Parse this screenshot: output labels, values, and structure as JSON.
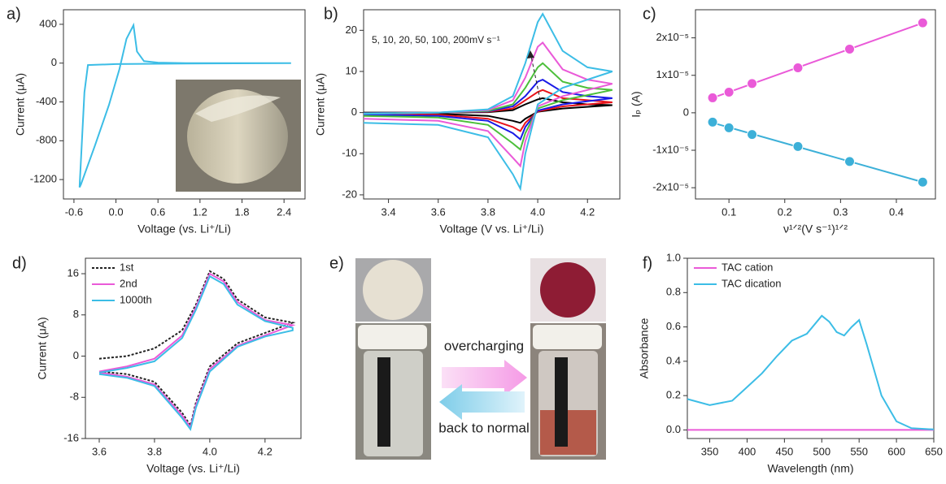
{
  "chart_data": [
    {
      "type": "line",
      "panel_label": "a)",
      "xlabel": "Voltage (vs. Li⁺/Li)",
      "ylabel": "Current (μA)",
      "xlim": [
        -0.75,
        2.7
      ],
      "ylim": [
        -1400,
        550
      ],
      "xticks": [
        -0.6,
        {
          "value": 0,
          "label": "0.0"
        },
        0.6,
        1.2,
        1.8,
        2.4
      ],
      "yticks": [
        400,
        0,
        -400,
        -800,
        -1200
      ],
      "series": [
        {
          "color": "#3cbde6",
          "x": [
            2.5,
            1.0,
            0.0,
            -0.4,
            -0.45,
            -0.52,
            -0.5,
            -0.3,
            -0.1,
            0.05,
            0.15,
            0.25,
            0.3,
            0.4,
            0.6,
            1.0,
            2.5
          ],
          "values": [
            0,
            -5,
            -10,
            -20,
            -300,
            -1280,
            -1250,
            -850,
            -430,
            -60,
            250,
            390,
            120,
            20,
            5,
            0,
            0
          ]
        }
      ]
    },
    {
      "type": "line",
      "panel_label": "b)",
      "xlabel": "Voltage (V vs. Li⁺/Li)",
      "ylabel": "Current (μA)",
      "annotation": "5, 10, 20, 50, 100, 200mV s⁻¹",
      "xlim": [
        3.3,
        4.33
      ],
      "ylim": [
        -21,
        25
      ],
      "xticks": [
        3.4,
        3.6,
        3.8,
        {
          "value": 4,
          "label": "4.0"
        },
        4.2
      ],
      "yticks": [
        -20,
        -10,
        0,
        10,
        20
      ],
      "series": [
        {
          "color": "#000000",
          "x": [
            3.3,
            3.6,
            3.8,
            3.9,
            3.95,
            4.0,
            4.02,
            4.1,
            4.2,
            4.3,
            4.3,
            4.1,
            4.0,
            3.95,
            3.93,
            3.9,
            3.8,
            3.6,
            3.3
          ],
          "values": [
            0,
            0,
            0.1,
            0.6,
            2,
            3.2,
            3.5,
            2.5,
            2,
            1.8,
            1.8,
            1,
            0.2,
            -1.5,
            -2.5,
            -2,
            -0.8,
            -0.3,
            -0.2
          ]
        },
        {
          "color": "#e8141b",
          "x": [
            3.3,
            3.6,
            3.8,
            3.9,
            3.95,
            4.0,
            4.02,
            4.1,
            4.2,
            4.3,
            4.3,
            4.1,
            4.0,
            3.95,
            3.93,
            3.9,
            3.8,
            3.6,
            3.3
          ],
          "values": [
            -0.1,
            0,
            0.2,
            1,
            3,
            5,
            5.5,
            3.5,
            3,
            2.5,
            2.5,
            1.5,
            0.3,
            -2.5,
            -4.5,
            -3.5,
            -1.5,
            -0.5,
            -0.3
          ]
        },
        {
          "color": "#1a1ae6",
          "x": [
            3.3,
            3.6,
            3.8,
            3.9,
            3.95,
            4.0,
            4.02,
            4.1,
            4.2,
            4.3,
            4.3,
            4.1,
            4.0,
            3.95,
            3.93,
            3.9,
            3.8,
            3.6,
            3.3
          ],
          "values": [
            -0.1,
            0,
            0.3,
            1.5,
            4,
            7.5,
            8,
            5,
            4,
            3.5,
            3.5,
            2,
            0.5,
            -3.5,
            -6.5,
            -5,
            -2,
            -0.8,
            -0.5
          ]
        },
        {
          "color": "#4cbf3a",
          "x": [
            3.3,
            3.6,
            3.8,
            3.9,
            3.95,
            4.0,
            4.02,
            4.1,
            4.2,
            4.3,
            4.3,
            4.1,
            4.0,
            3.95,
            3.93,
            3.9,
            3.8,
            3.6,
            3.3
          ],
          "values": [
            -0.2,
            0,
            0.4,
            2,
            6,
            11,
            12,
            7.5,
            6,
            5.5,
            5.5,
            3,
            1,
            -5,
            -9,
            -7.5,
            -3,
            -1.2,
            -0.8
          ]
        },
        {
          "color": "#ea5ad8",
          "x": [
            3.3,
            3.6,
            3.8,
            3.9,
            3.95,
            4.0,
            4.02,
            4.1,
            4.2,
            4.3,
            4.3,
            4.1,
            4.0,
            3.95,
            3.93,
            3.9,
            3.8,
            3.6,
            3.3
          ],
          "values": [
            -0.3,
            0,
            0.6,
            3,
            8.5,
            16,
            17,
            10.5,
            8,
            7,
            7,
            4,
            1.5,
            -7,
            -13,
            -11,
            -4.5,
            -2,
            -1.5
          ]
        },
        {
          "color": "#3cbde6",
          "x": [
            3.3,
            3.6,
            3.8,
            3.9,
            3.95,
            4.0,
            4.02,
            4.1,
            4.2,
            4.3,
            4.3,
            4.1,
            4.0,
            3.95,
            3.93,
            3.9,
            3.8,
            3.6,
            3.3
          ],
          "values": [
            -0.3,
            0,
            0.8,
            4,
            12,
            22,
            24,
            15,
            11,
            10,
            10,
            6,
            2,
            -10,
            -18.5,
            -15,
            -6,
            -3,
            -2.5
          ]
        }
      ]
    },
    {
      "type": "scatter",
      "panel_label": "c)",
      "xlabel": "ν¹ᐟ²(V s⁻¹)¹ᐟ²",
      "ylabel": "Iₚ (A)",
      "trendline": true,
      "xlim": [
        0.04,
        0.47
      ],
      "ylim": [
        -2.3e-05,
        2.75e-05
      ],
      "xticks": [
        0.1,
        0.2,
        0.3,
        0.4
      ],
      "yticks": [
        {
          "value": 2e-05,
          "label": "2x10⁻⁵"
        },
        {
          "value": 1e-05,
          "label": "1x10⁻⁵"
        },
        0,
        {
          "value": -1e-05,
          "label": "-1x10⁻⁵"
        },
        {
          "value": -2e-05,
          "label": "-2x10⁻⁵"
        }
      ],
      "series": [
        {
          "color": "#ea5ad8",
          "x": [
            0.0707,
            0.1,
            0.1414,
            0.2236,
            0.3162,
            0.4472
          ],
          "values": [
            4e-06,
            5.5e-06,
            7.8e-06,
            1.2e-05,
            1.7e-05,
            2.4e-05
          ]
        },
        {
          "color": "#3cb0d8",
          "x": [
            0.0707,
            0.1,
            0.1414,
            0.2236,
            0.3162,
            0.4472
          ],
          "values": [
            -2.5e-06,
            -4e-06,
            -5.8e-06,
            -9e-06,
            -1.3e-05,
            -1.85e-05
          ]
        }
      ]
    },
    {
      "type": "line",
      "panel_label": "d)",
      "xlabel": "Voltage (vs. Li⁺/Li)",
      "ylabel": "Current (μA)",
      "legend": "upper-left",
      "xlim": [
        3.55,
        4.33
      ],
      "ylim": [
        -16,
        19
      ],
      "xticks": [
        3.6,
        3.8,
        {
          "value": 4,
          "label": "4.0"
        },
        4.2
      ],
      "yticks": [
        16,
        8,
        0,
        -8,
        -16
      ],
      "series": [
        {
          "name": "1st",
          "color": "#222222",
          "dash": "3,2",
          "x": [
            3.6,
            3.7,
            3.8,
            3.9,
            3.95,
            4.0,
            4.05,
            4.1,
            4.2,
            4.3,
            4.3,
            4.2,
            4.1,
            4.0,
            3.95,
            3.93,
            3.9,
            3.8,
            3.7,
            3.6
          ],
          "values": [
            -0.5,
            0,
            1.5,
            5,
            10,
            16.5,
            15,
            11,
            7.5,
            6.5,
            6.5,
            4.5,
            2.5,
            -2,
            -9,
            -13.5,
            -11,
            -5,
            -3.5,
            -3
          ]
        },
        {
          "name": "2nd",
          "color": "#ea5ad8",
          "x": [
            3.6,
            3.7,
            3.8,
            3.9,
            3.95,
            4.0,
            4.05,
            4.1,
            4.2,
            4.3,
            4.3,
            4.2,
            4.1,
            4.0,
            3.95,
            3.93,
            3.9,
            3.8,
            3.7,
            3.6
          ],
          "values": [
            -3,
            -2,
            -0.5,
            4,
            9.5,
            16,
            14.5,
            10.5,
            7,
            6,
            6,
            4,
            2,
            -2.5,
            -9.5,
            -13.8,
            -11.5,
            -5.5,
            -4,
            -3.2
          ]
        },
        {
          "name": "1000th",
          "color": "#3cbde6",
          "x": [
            3.6,
            3.7,
            3.8,
            3.9,
            3.95,
            4.0,
            4.05,
            4.1,
            4.2,
            4.3,
            4.3,
            4.2,
            4.1,
            4.0,
            3.95,
            3.93,
            3.9,
            3.8,
            3.7,
            3.6
          ],
          "values": [
            -3.2,
            -2.3,
            -1,
            3.5,
            9,
            15.5,
            14,
            10,
            6.8,
            5.5,
            5,
            3.8,
            1.8,
            -3,
            -10,
            -14.2,
            -12,
            -5.8,
            -4.2,
            -3.5
          ]
        }
      ]
    },
    {
      "type": "line",
      "panel_label": "f)",
      "xlabel": "Wavelength (nm)",
      "ylabel": "Absorbance",
      "legend": "upper-left",
      "xlim": [
        320,
        650
      ],
      "ylim": [
        -0.05,
        1.0
      ],
      "xticks": [
        350,
        400,
        450,
        500,
        550,
        600,
        650
      ],
      "yticks": [
        {
          "value": 0,
          "label": "0.0"
        },
        0.2,
        0.4,
        0.6,
        0.8,
        {
          "value": 1,
          "label": "1.0"
        }
      ],
      "series": [
        {
          "name": "TAC cation",
          "color": "#ea5ad8",
          "x": [
            320,
            650
          ],
          "values": [
            0,
            0
          ]
        },
        {
          "name": "TAC dication",
          "color": "#3cbde6",
          "x": [
            320,
            350,
            380,
            400,
            420,
            440,
            460,
            480,
            500,
            510,
            520,
            530,
            540,
            550,
            560,
            580,
            600,
            620,
            650
          ],
          "values": [
            0.18,
            0.145,
            0.17,
            0.25,
            0.33,
            0.43,
            0.52,
            0.56,
            0.665,
            0.63,
            0.57,
            0.55,
            0.6,
            0.64,
            0.5,
            0.2,
            0.05,
            0.01,
            0.003
          ]
        }
      ]
    }
  ],
  "panel_e": {
    "panel_label": "e)",
    "arrow_top": "overcharging",
    "arrow_bottom": "back to normal"
  }
}
